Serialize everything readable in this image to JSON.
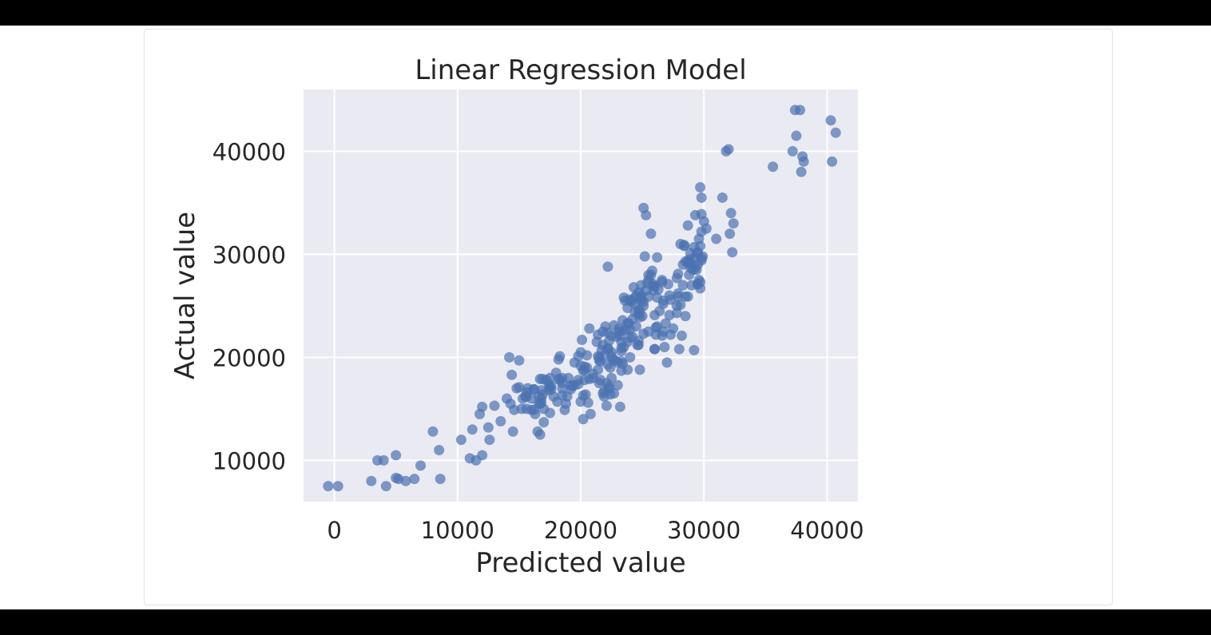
{
  "chart_data": {
    "type": "scatter",
    "title": "Linear Regression Model",
    "xlabel": "Predicted value",
    "ylabel": "Actual value",
    "xlim": [
      -2500,
      42500
    ],
    "ylim": [
      6000,
      46000
    ],
    "xticks": [
      0,
      10000,
      20000,
      30000,
      40000
    ],
    "yticks": [
      10000,
      20000,
      30000,
      40000
    ],
    "xtick_labels": [
      "0",
      "10000",
      "20000",
      "30000",
      "40000"
    ],
    "ytick_labels": [
      "10000",
      "20000",
      "30000",
      "40000"
    ],
    "grid": true,
    "background": "#eaeaf2",
    "point_color": "#4c72b0",
    "point_alpha": 0.7,
    "points": [
      [
        -500,
        7500
      ],
      [
        300,
        7500
      ],
      [
        3000,
        8000
      ],
      [
        3500,
        10000
      ],
      [
        4000,
        10000
      ],
      [
        4200,
        7500
      ],
      [
        5000,
        10500
      ],
      [
        5000,
        8300
      ],
      [
        5800,
        8000
      ],
      [
        6500,
        8200
      ],
      [
        7000,
        9500
      ],
      [
        8000,
        12800
      ],
      [
        8500,
        11000
      ],
      [
        8600,
        8200
      ],
      [
        10300,
        12000
      ],
      [
        11000,
        10200
      ],
      [
        11500,
        10000
      ],
      [
        12000,
        10500
      ],
      [
        11200,
        13000
      ],
      [
        11800,
        14500
      ],
      [
        12000,
        15200
      ],
      [
        12500,
        13200
      ],
      [
        12600,
        12000
      ],
      [
        13000,
        15300
      ],
      [
        13500,
        13800
      ],
      [
        14000,
        16000
      ],
      [
        14200,
        20000
      ],
      [
        14500,
        12800
      ],
      [
        14800,
        17000
      ],
      [
        15000,
        19700
      ],
      [
        15200,
        15000
      ],
      [
        15500,
        16200
      ],
      [
        15700,
        17000
      ],
      [
        16000,
        16000
      ],
      [
        16200,
        14900
      ],
      [
        16500,
        12800
      ],
      [
        16800,
        16800
      ],
      [
        17000,
        15000
      ],
      [
        17200,
        17800
      ],
      [
        17500,
        18000
      ],
      [
        17800,
        16200
      ],
      [
        18000,
        18500
      ],
      [
        18200,
        19800
      ],
      [
        18500,
        17500
      ],
      [
        18800,
        15500
      ],
      [
        19000,
        18000
      ],
      [
        19200,
        16900
      ],
      [
        19500,
        19500
      ],
      [
        19800,
        17800
      ],
      [
        20000,
        20500
      ],
      [
        20200,
        14000
      ],
      [
        20300,
        18800
      ],
      [
        20500,
        19000
      ],
      [
        20700,
        22800
      ],
      [
        21000,
        18000
      ],
      [
        21300,
        21500
      ],
      [
        21500,
        20000
      ],
      [
        21800,
        22500
      ],
      [
        22000,
        23000
      ],
      [
        22200,
        28800
      ],
      [
        22300,
        17000
      ],
      [
        22500,
        20500
      ],
      [
        22700,
        16500
      ],
      [
        22900,
        22000
      ],
      [
        23000,
        19500
      ],
      [
        23200,
        15200
      ],
      [
        23500,
        21000
      ],
      [
        23800,
        24800
      ],
      [
        24000,
        20000
      ],
      [
        24200,
        22000
      ],
      [
        24400,
        25800
      ],
      [
        24500,
        23000
      ],
      [
        24700,
        26300
      ],
      [
        24900,
        27000
      ],
      [
        25000,
        24000
      ],
      [
        25100,
        34500
      ],
      [
        25200,
        29800
      ],
      [
        25300,
        33800
      ],
      [
        25500,
        28000
      ],
      [
        25700,
        32000
      ],
      [
        25900,
        26500
      ],
      [
        26000,
        20800
      ],
      [
        26200,
        23000
      ],
      [
        26400,
        24500
      ],
      [
        26600,
        27500
      ],
      [
        26800,
        21000
      ],
      [
        27000,
        19500
      ],
      [
        27200,
        26000
      ],
      [
        27500,
        22800
      ],
      [
        27800,
        25000
      ],
      [
        28000,
        20800
      ],
      [
        28100,
        31000
      ],
      [
        28300,
        29000
      ],
      [
        28500,
        24000
      ],
      [
        28700,
        32800
      ],
      [
        28800,
        29500
      ],
      [
        29000,
        27000
      ],
      [
        29200,
        20700
      ],
      [
        29300,
        33800
      ],
      [
        29400,
        28500
      ],
      [
        29500,
        30200
      ],
      [
        29600,
        31500
      ],
      [
        29700,
        36500
      ],
      [
        29800,
        35500
      ],
      [
        29900,
        29800
      ],
      [
        30000,
        33200
      ],
      [
        30200,
        32500
      ],
      [
        31000,
        31500
      ],
      [
        31500,
        35500
      ],
      [
        31800,
        40000
      ],
      [
        32000,
        40200
      ],
      [
        32100,
        32000
      ],
      [
        32200,
        34000
      ],
      [
        32300,
        30200
      ],
      [
        32400,
        33000
      ],
      [
        35600,
        38500
      ],
      [
        37200,
        40000
      ],
      [
        37400,
        44000
      ],
      [
        37500,
        41500
      ],
      [
        37800,
        44000
      ],
      [
        37900,
        38000
      ],
      [
        38000,
        39500
      ],
      [
        38100,
        39000
      ],
      [
        40300,
        43000
      ],
      [
        40400,
        39000
      ],
      [
        40700,
        41800
      ],
      [
        5200,
        8200
      ],
      [
        21800,
        16500
      ],
      [
        24600,
        21200
      ],
      [
        15600,
        16200
      ],
      [
        22100,
        17500
      ],
      [
        23300,
        18700
      ],
      [
        26700,
        25500
      ],
      [
        28700,
        25900
      ],
      [
        19200,
        17300
      ],
      [
        14300,
        15500
      ],
      [
        26200,
        29700
      ],
      [
        17500,
        14600
      ],
      [
        20100,
        21700
      ],
      [
        20400,
        16400
      ],
      [
        24800,
        24500
      ],
      [
        15300,
        16000
      ],
      [
        28200,
        22100
      ],
      [
        29500,
        29000
      ],
      [
        16600,
        15500
      ],
      [
        27800,
        24300
      ],
      [
        25900,
        27100
      ],
      [
        23500,
        25800
      ],
      [
        16200,
        16900
      ],
      [
        22800,
        19700
      ],
      [
        24000,
        21900
      ],
      [
        24900,
        25800
      ],
      [
        23800,
        18800
      ],
      [
        23400,
        22600
      ],
      [
        29700,
        30800
      ],
      [
        22500,
        22100
      ],
      [
        20800,
        14500
      ],
      [
        21500,
        19700
      ],
      [
        21400,
        20100
      ],
      [
        23300,
        20600
      ],
      [
        19800,
        17400
      ],
      [
        29100,
        28500
      ],
      [
        29400,
        30100
      ],
      [
        26000,
        20800
      ],
      [
        20200,
        18700
      ],
      [
        26100,
        22900
      ],
      [
        26600,
        27300
      ],
      [
        28400,
        30900
      ],
      [
        25100,
        22300
      ],
      [
        20300,
        17800
      ],
      [
        18500,
        16300
      ],
      [
        16000,
        14900
      ],
      [
        25700,
        28000
      ],
      [
        23100,
        22800
      ],
      [
        21600,
        19600
      ],
      [
        28500,
        25900
      ],
      [
        21000,
        18400
      ],
      [
        22300,
        17200
      ],
      [
        26700,
        22500
      ],
      [
        24300,
        26800
      ],
      [
        27800,
        27700
      ],
      [
        21900,
        20200
      ],
      [
        25800,
        28400
      ],
      [
        17600,
        17200
      ],
      [
        23900,
        23300
      ],
      [
        23300,
        21500
      ],
      [
        25100,
        25400
      ],
      [
        21700,
        20700
      ],
      [
        23700,
        22700
      ],
      [
        29300,
        28700
      ],
      [
        28800,
        29100
      ],
      [
        22400,
        16400
      ],
      [
        22600,
        19800
      ],
      [
        17000,
        13700
      ],
      [
        24000,
        22700
      ],
      [
        25500,
        22500
      ],
      [
        29800,
        29600
      ],
      [
        15600,
        15000
      ],
      [
        23600,
        25500
      ],
      [
        26000,
        24100
      ],
      [
        23000,
        17300
      ],
      [
        18700,
        14900
      ],
      [
        14600,
        14900
      ],
      [
        16300,
        14500
      ],
      [
        18900,
        16200
      ],
      [
        16700,
        15500
      ],
      [
        20700,
        17900
      ],
      [
        16700,
        12500
      ],
      [
        21900,
        16200
      ],
      [
        20600,
        15600
      ],
      [
        27900,
        26200
      ],
      [
        26300,
        26600
      ],
      [
        22200,
        19300
      ],
      [
        26700,
        25200
      ],
      [
        21400,
        22200
      ],
      [
        27100,
        27100
      ],
      [
        22100,
        15300
      ],
      [
        21500,
        17500
      ],
      [
        29800,
        29400
      ],
      [
        29500,
        27100
      ],
      [
        24700,
        24600
      ],
      [
        19500,
        17300
      ],
      [
        28900,
        29200
      ],
      [
        17400,
        16800
      ],
      [
        26600,
        22100
      ],
      [
        20300,
        19100
      ],
      [
        27300,
        22200
      ],
      [
        15600,
        16600
      ],
      [
        24400,
        25200
      ],
      [
        21600,
        17800
      ],
      [
        20200,
        16300
      ],
      [
        29600,
        27500
      ],
      [
        24900,
        26000
      ],
      [
        19800,
        20100
      ],
      [
        26900,
        23300
      ],
      [
        24800,
        18800
      ],
      [
        29800,
        33900
      ],
      [
        22300,
        21600
      ],
      [
        22400,
        19000
      ],
      [
        24100,
        25500
      ],
      [
        18500,
        18000
      ],
      [
        29700,
        26700
      ],
      [
        26000,
        26900
      ],
      [
        23200,
        22100
      ],
      [
        28300,
        27000
      ],
      [
        16600,
        16200
      ],
      [
        25500,
        25900
      ],
      [
        23400,
        23600
      ],
      [
        25100,
        25000
      ],
      [
        21900,
        16700
      ],
      [
        29200,
        30700
      ],
      [
        28700,
        29300
      ],
      [
        20500,
        20200
      ],
      [
        16800,
        16000
      ],
      [
        21800,
        21200
      ],
      [
        16900,
        16400
      ],
      [
        29200,
        29600
      ],
      [
        24800,
        23900
      ],
      [
        23800,
        23300
      ],
      [
        28800,
        28000
      ],
      [
        24700,
        24200
      ],
      [
        27900,
        28100
      ],
      [
        24700,
        21600
      ],
      [
        20000,
        19200
      ],
      [
        22200,
        20900
      ],
      [
        29500,
        27100
      ],
      [
        24400,
        24400
      ],
      [
        15000,
        17100
      ],
      [
        29800,
        32200
      ],
      [
        26200,
        25800
      ],
      [
        27200,
        24100
      ],
      [
        25500,
        27500
      ],
      [
        23100,
        22500
      ],
      [
        14400,
        18300
      ],
      [
        18300,
        20100
      ],
      [
        19300,
        17200
      ],
      [
        18100,
        15700
      ],
      [
        27900,
        25900
      ],
      [
        22500,
        20100
      ],
      [
        24100,
        25400
      ],
      [
        24900,
        25500
      ],
      [
        16700,
        17900
      ],
      [
        25300,
        26500
      ],
      [
        22200,
        20800
      ],
      [
        17400,
        17400
      ],
      [
        22200,
        22400
      ],
      [
        23400,
        19400
      ],
      [
        22500,
        18000
      ],
      [
        16900,
        17900
      ],
      [
        24200,
        23700
      ],
      [
        27300,
        25600
      ],
      [
        26100,
        22200
      ],
      [
        28100,
        25100
      ],
      [
        21400,
        18800
      ],
      [
        23300,
        20900
      ],
      [
        28900,
        28700
      ],
      [
        23300,
        19600
      ],
      [
        24500,
        26000
      ],
      [
        17500,
        17100
      ],
      [
        16200,
        16900
      ],
      [
        20000,
        15700
      ],
      [
        24700,
        21200
      ],
      [
        18300,
        17800
      ],
      [
        28400,
        30800
      ],
      [
        29700,
        27300
      ],
      [
        16800,
        15600
      ],
      [
        28500,
        29300
      ],
      [
        25400,
        27200
      ],
      [
        22700,
        23100
      ],
      [
        28900,
        30100
      ],
      [
        17600,
        16900
      ],
      [
        18200,
        17900
      ],
      [
        18500,
        17000
      ],
      [
        23900,
        25600
      ],
      [
        23800,
        21500
      ],
      [
        25900,
        26900
      ]
    ]
  }
}
